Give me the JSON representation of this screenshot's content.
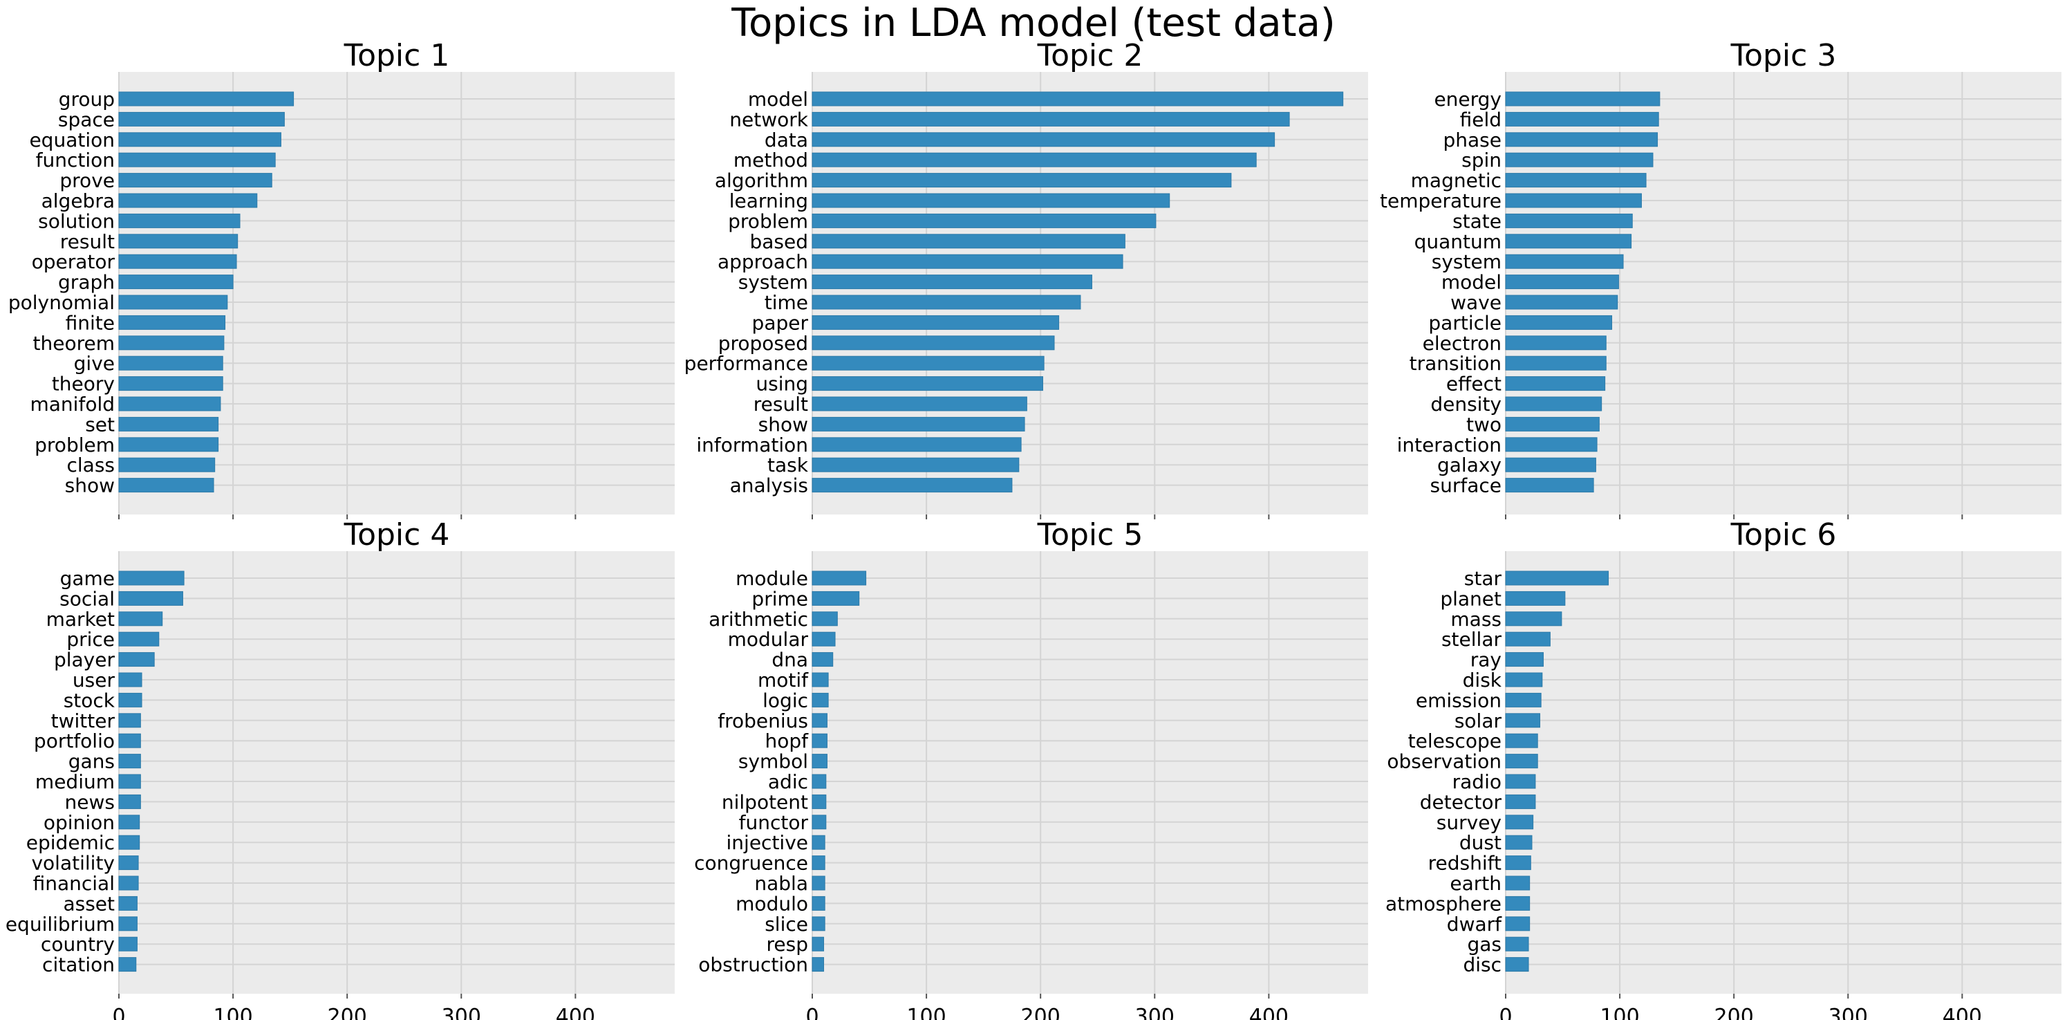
{
  "title": "Topics in LDA model (test data)",
  "chart_data": {
    "type": "bar",
    "orientation": "horizontal",
    "xlim": [
      0,
      487
    ],
    "xticks": [
      0,
      100,
      200,
      300,
      400
    ],
    "grid": true,
    "bar_color": "#348abd",
    "background_color": "#ebebeb",
    "panels": [
      {
        "title": "Topic 1",
        "categories": [
          "group",
          "space",
          "equation",
          "function",
          "prove",
          "algebra",
          "solution",
          "result",
          "operator",
          "graph",
          "polynomial",
          "finite",
          "theorem",
          "give",
          "theory",
          "manifold",
          "set",
          "problem",
          "class",
          "show"
        ],
        "values": [
          153,
          145,
          142,
          137,
          134,
          121,
          106,
          104,
          103,
          100,
          95,
          93,
          92,
          91,
          91,
          89,
          87,
          87,
          84,
          83
        ]
      },
      {
        "title": "Topic 2",
        "categories": [
          "model",
          "network",
          "data",
          "method",
          "algorithm",
          "learning",
          "problem",
          "based",
          "approach",
          "system",
          "time",
          "paper",
          "proposed",
          "performance",
          "using",
          "result",
          "show",
          "information",
          "task",
          "analysis"
        ],
        "values": [
          465,
          418,
          405,
          389,
          367,
          313,
          301,
          274,
          272,
          245,
          235,
          216,
          212,
          203,
          202,
          188,
          186,
          183,
          181,
          175
        ]
      },
      {
        "title": "Topic 3",
        "categories": [
          "energy",
          "field",
          "phase",
          "spin",
          "magnetic",
          "temperature",
          "state",
          "quantum",
          "system",
          "model",
          "wave",
          "particle",
          "electron",
          "transition",
          "effect",
          "density",
          "two",
          "interaction",
          "galaxy",
          "surface"
        ],
        "values": [
          135,
          134,
          133,
          129,
          123,
          119,
          111,
          110,
          103,
          99,
          98,
          93,
          88,
          88,
          87,
          84,
          82,
          80,
          79,
          77
        ]
      },
      {
        "title": "Topic 4",
        "categories": [
          "game",
          "social",
          "market",
          "price",
          "player",
          "user",
          "stock",
          "twitter",
          "portfolio",
          "gans",
          "medium",
          "news",
          "opinion",
          "epidemic",
          "volatility",
          "financial",
          "asset",
          "equilibrium",
          "country",
          "citation"
        ],
        "values": [
          57,
          56,
          38,
          35,
          31,
          20,
          20,
          19,
          19,
          19,
          19,
          19,
          18,
          18,
          17,
          17,
          16,
          16,
          16,
          15
        ]
      },
      {
        "title": "Topic 5",
        "categories": [
          "module",
          "prime",
          "arithmetic",
          "modular",
          "dna",
          "motif",
          "logic",
          "frobenius",
          "hopf",
          "symbol",
          "adic",
          "nilpotent",
          "functor",
          "injective",
          "congruence",
          "nabla",
          "modulo",
          "slice",
          "resp",
          "obstruction"
        ],
        "values": [
          47,
          41,
          22,
          20,
          18,
          14,
          14,
          13,
          13,
          13,
          12,
          12,
          12,
          11,
          11,
          11,
          11,
          11,
          10,
          10
        ]
      },
      {
        "title": "Topic 6",
        "categories": [
          "star",
          "planet",
          "mass",
          "stellar",
          "ray",
          "disk",
          "emission",
          "solar",
          "telescope",
          "observation",
          "radio",
          "detector",
          "survey",
          "dust",
          "redshift",
          "earth",
          "atmosphere",
          "dwarf",
          "gas",
          "disc"
        ],
        "values": [
          90,
          52,
          49,
          39,
          33,
          32,
          31,
          30,
          28,
          28,
          26,
          26,
          24,
          23,
          22,
          21,
          21,
          21,
          20,
          20
        ]
      }
    ]
  }
}
